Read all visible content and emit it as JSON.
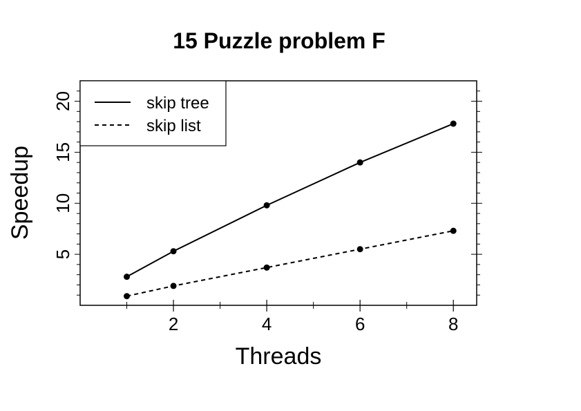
{
  "chart_data": {
    "type": "line",
    "title": "15 Puzzle problem F",
    "xlabel": "Threads",
    "ylabel": "Speedup",
    "xlim": [
      0,
      8.5
    ],
    "ylim": [
      0,
      22
    ],
    "x_ticks": [
      2,
      4,
      6,
      8
    ],
    "x_ticks_minor": [
      1,
      3,
      5,
      7
    ],
    "y_ticks": [
      5,
      10,
      15,
      20
    ],
    "grid": false,
    "legend_position": "top-left",
    "series": [
      {
        "name": "skip tree",
        "style": "solid",
        "x": [
          1,
          2,
          4,
          6,
          8
        ],
        "y": [
          2.8,
          5.3,
          9.8,
          14.0,
          17.8
        ]
      },
      {
        "name": "skip list",
        "style": "dashed",
        "x": [
          1,
          2,
          4,
          6,
          8
        ],
        "y": [
          0.9,
          1.9,
          3.7,
          5.5,
          7.3
        ]
      }
    ],
    "colors": {
      "line": "#000000",
      "background": "#ffffff"
    }
  }
}
